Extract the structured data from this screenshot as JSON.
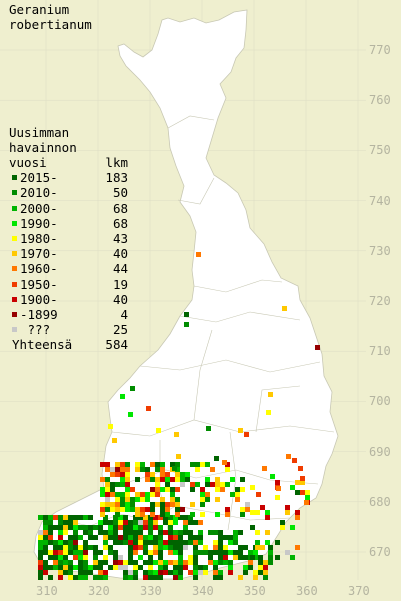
{
  "title": {
    "line1": "Geranium",
    "line2": "robertianum"
  },
  "legend": {
    "header_line1": "Uusimman",
    "header_line2": "havainnon",
    "header_col1": "vuosi",
    "header_col2": "lkm",
    "items": [
      {
        "label": "2015-",
        "count": "183",
        "color": "#006400"
      },
      {
        "label": "2010-",
        "count": "50",
        "color": "#008c00"
      },
      {
        "label": "2000-",
        "count": "68",
        "color": "#00b400"
      },
      {
        "label": "1990-",
        "count": "68",
        "color": "#00e600"
      },
      {
        "label": "1980-",
        "count": "43",
        "color": "#ffff00"
      },
      {
        "label": "1970-",
        "count": "40",
        "color": "#ffc800"
      },
      {
        "label": "1960-",
        "count": "44",
        "color": "#ff7800"
      },
      {
        "label": "1950-",
        "count": "19",
        "color": "#f03c00"
      },
      {
        "label": "1900-",
        "count": "40",
        "color": "#c80000"
      },
      {
        "label": "-1899",
        "count": "4",
        "color": "#960000"
      },
      {
        "label": " ???",
        "count": "25",
        "color": "#c8c8c8"
      }
    ],
    "total_label": "Yhteensä",
    "total_count": "584"
  },
  "axes": {
    "y_ticks": [
      "770",
      "760",
      "750",
      "740",
      "730",
      "720",
      "710",
      "700",
      "690",
      "680",
      "670"
    ],
    "x_ticks": [
      "310",
      "320",
      "330",
      "340",
      "350",
      "360",
      "370"
    ]
  },
  "colors": {
    "background": "#efefcf",
    "land": "#ffffff",
    "grid": "#c8c8b4",
    "tick_text": "#b4b4a0"
  }
}
